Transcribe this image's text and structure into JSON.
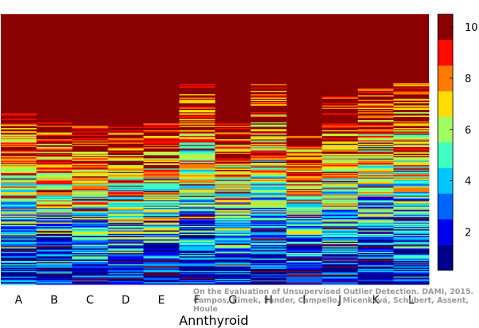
{
  "chart_data": {
    "type": "heatmap",
    "xlabel": "Annthyroid",
    "columns": [
      "A",
      "B",
      "C",
      "D",
      "E",
      "F",
      "G",
      "H",
      "I",
      "J",
      "K",
      "L"
    ],
    "colorbar": {
      "ticks": [
        2,
        4,
        6,
        8,
        10
      ],
      "min": 0.5,
      "max": 10.5,
      "levels": 10,
      "colormap": "jet"
    },
    "column_top_fraction": [
      0.36,
      0.38,
      0.41,
      0.42,
      0.4,
      0.25,
      0.39,
      0.26,
      0.43,
      0.3,
      0.26,
      0.25
    ],
    "grid": false,
    "seed": 7
  },
  "credit": {
    "line1": "On the Evaluation of Unsupervised Outlier Detection. DAMI, 2015.",
    "line2": "Campos, Zimek, Sander, Campello, Micenková, Schubert, Assent, Houle"
  }
}
